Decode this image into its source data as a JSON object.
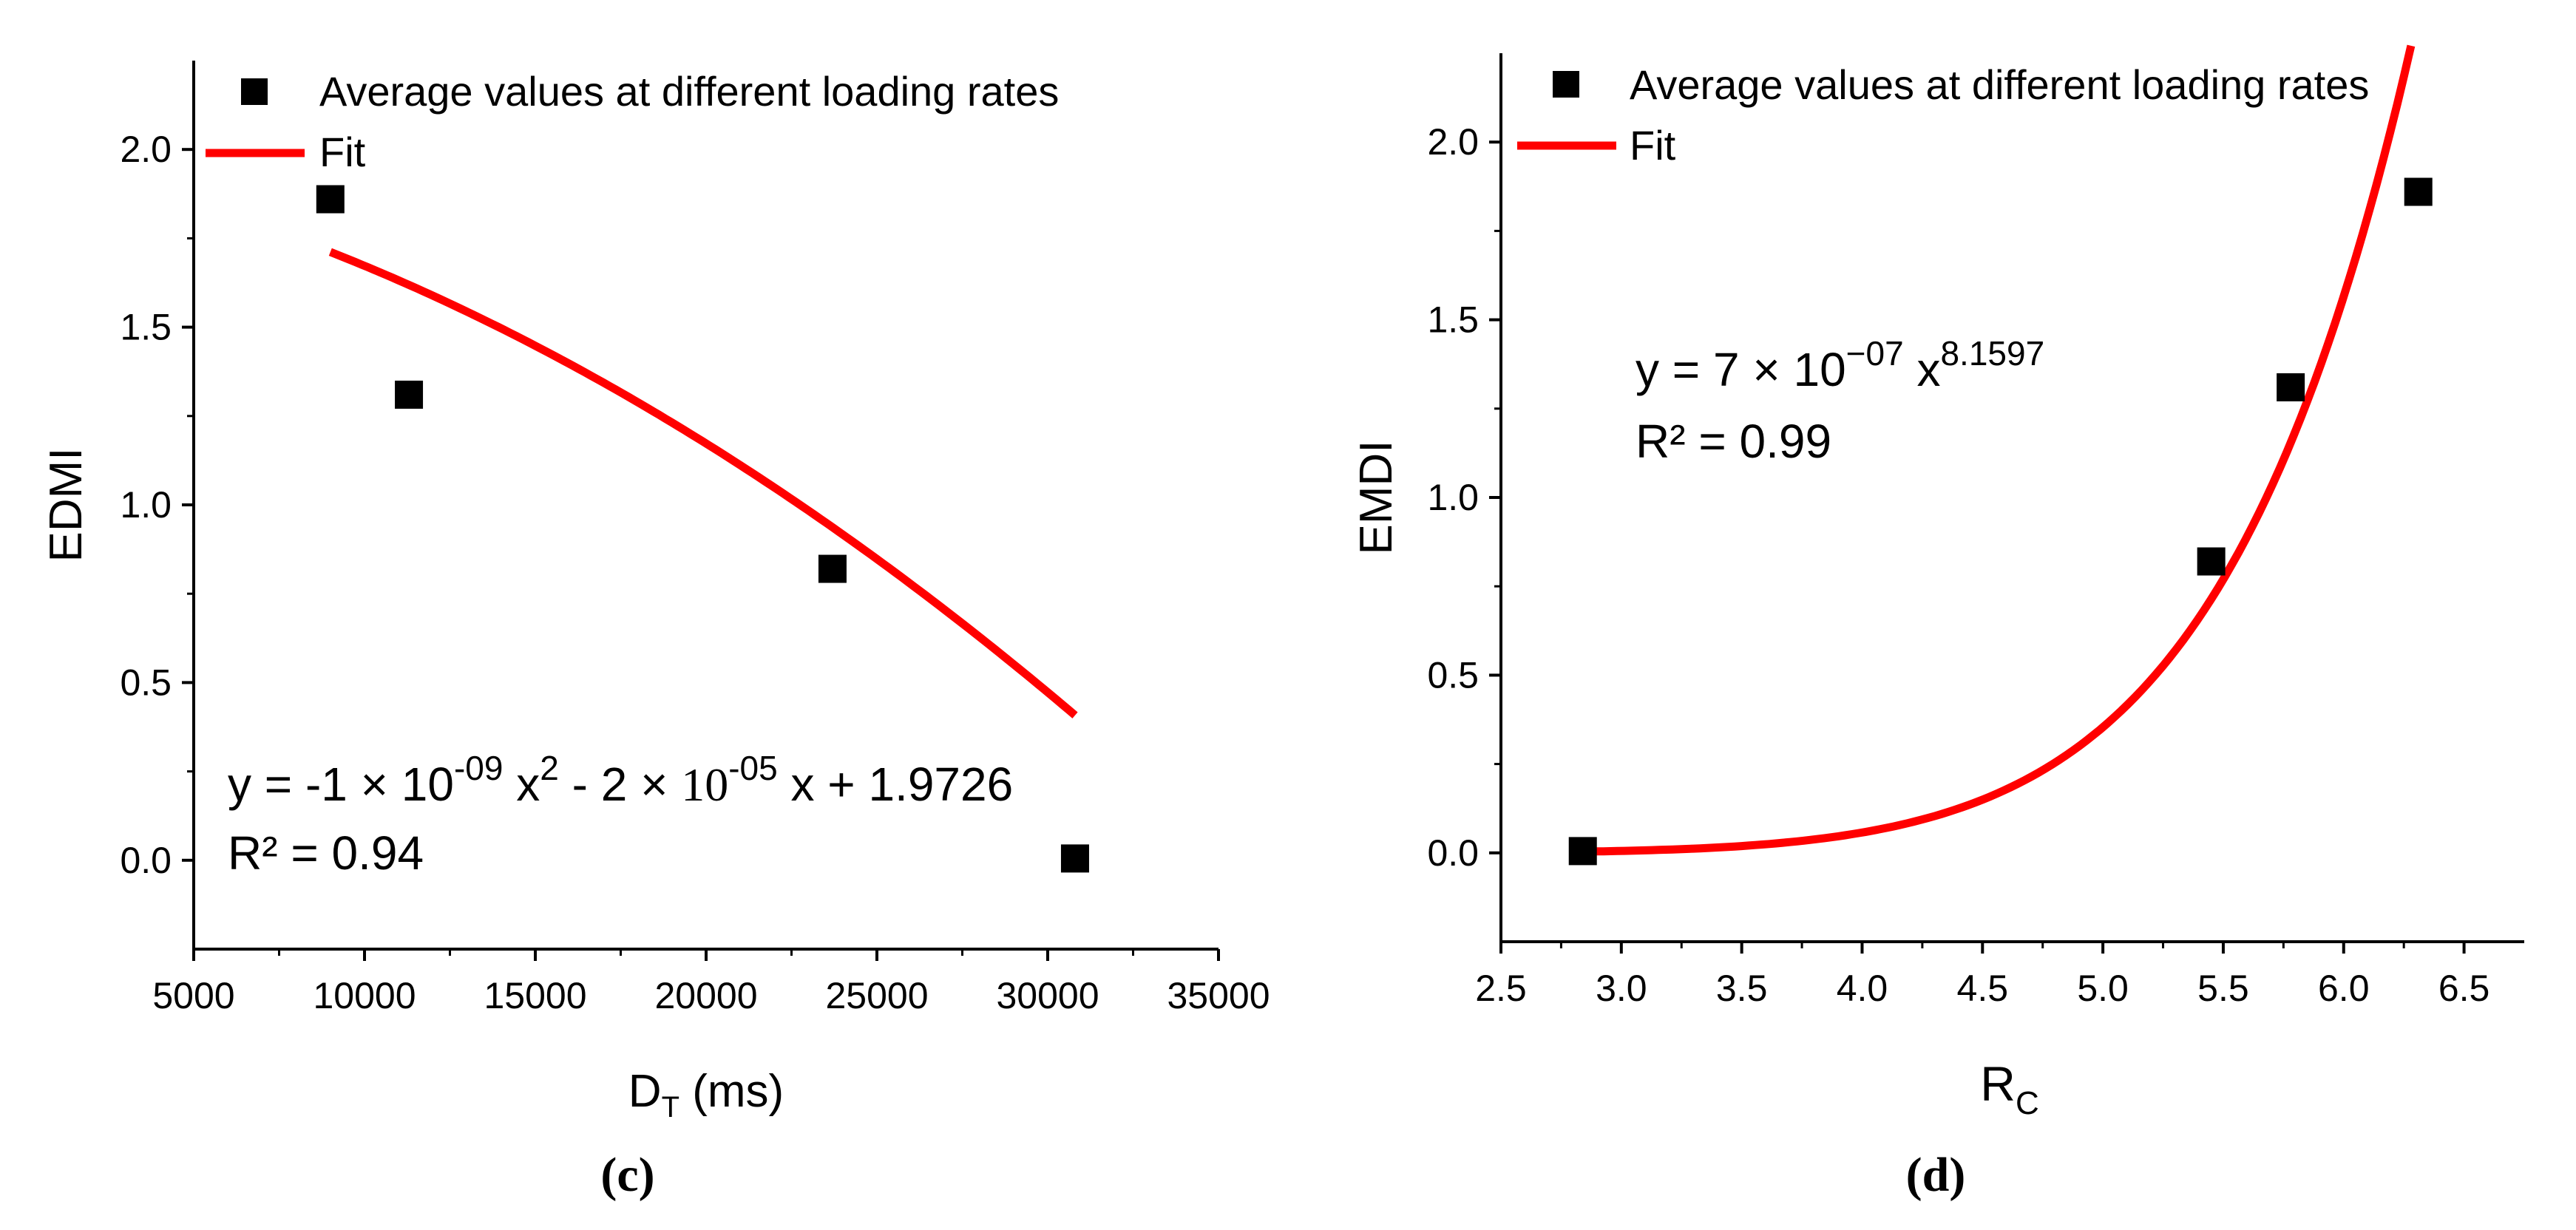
{
  "chart_data": [
    {
      "type": "scatter",
      "panel_label": "(c)",
      "panel_letter": "c",
      "xlabel": "D",
      "xlabel_sub": "T",
      "xlabel_suffix": " (ms)",
      "ylabel": "EDMI",
      "xlim": [
        5000,
        35000
      ],
      "ylim": [
        -0.25,
        2.25
      ],
      "xticks": [
        5000,
        10000,
        15000,
        20000,
        25000,
        30000,
        35000
      ],
      "xtick_labels": [
        "5000",
        "10000",
        "15000",
        "20000",
        "25000",
        "30000",
        "35000"
      ],
      "yticks": [
        0.0,
        0.5,
        1.0,
        1.5,
        2.0
      ],
      "ytick_labels": [
        "0.0",
        "0.5",
        "1.0",
        "1.5",
        "2.0"
      ],
      "series": [
        {
          "name": "Average values at different loading rates",
          "kind": "scatter",
          "marker": "square",
          "color": "#000000",
          "x": [
            9000,
            11300,
            23700,
            30800
          ],
          "y": [
            1.86,
            1.31,
            0.82,
            0.005
          ]
        },
        {
          "name": "Fit",
          "kind": "line",
          "color": "#ff0000",
          "equation": "y = -1e-09 x^2 - 2e-05 x + 1.9726",
          "x_range": [
            9000,
            30800
          ]
        }
      ],
      "annotation": {
        "y_eq": "y = -1 × 10",
        "exp1": "-09",
        "x_term": " x",
        "exp2": "2",
        "minus": " - 2 × ",
        "ten": "10",
        "exp3": "-05",
        "tail": " x + 1.9726",
        "r2": "R² = 0.94"
      }
    },
    {
      "type": "scatter",
      "panel_label": "(d)",
      "panel_letter": "d",
      "xlabel": "R",
      "xlabel_sub": "C",
      "xlabel_suffix": "",
      "ylabel": "EMDI",
      "xlim": [
        2.5,
        6.75
      ],
      "ylim": [
        -0.25,
        2.25
      ],
      "xticks": [
        2.5,
        3.0,
        3.5,
        4.0,
        4.5,
        5.0,
        5.5,
        6.0,
        6.5
      ],
      "xtick_labels": [
        "2.5",
        "3.0",
        "3.5",
        "4.0",
        "4.5",
        "5.0",
        "5.5",
        "6.0",
        "6.5"
      ],
      "yticks": [
        0.0,
        0.5,
        1.0,
        1.5,
        2.0
      ],
      "ytick_labels": [
        "0.0",
        "0.5",
        "1.0",
        "1.5",
        "2.0"
      ],
      "series": [
        {
          "name": "Average values at different loading rates",
          "kind": "scatter",
          "marker": "square",
          "color": "#000000",
          "x": [
            2.84,
            5.45,
            5.78,
            6.31
          ],
          "y": [
            0.005,
            0.82,
            1.31,
            1.86
          ]
        },
        {
          "name": "Fit",
          "kind": "line",
          "color": "#ff0000",
          "equation": "y = 7e-07 x^8.1597",
          "x_range": [
            2.84,
            6.28
          ]
        }
      ],
      "annotation": {
        "y_eq": "y = 7 × 10",
        "exp1": "−07",
        "x_term": " x",
        "exp2": "8.1597",
        "r2": "R² = 0.99"
      }
    }
  ]
}
